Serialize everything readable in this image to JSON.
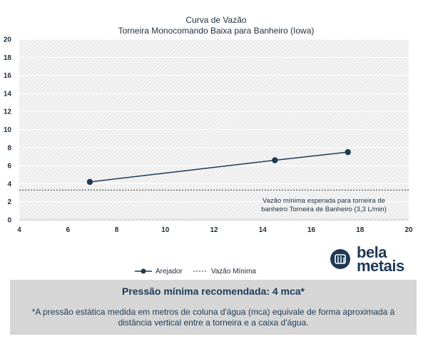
{
  "chart_data": {
    "type": "line",
    "title": "Curva de Vazão",
    "subtitle": "Torneira Monocomando Baixa para Banheiro (Iowa)",
    "xlim": [
      4,
      20
    ],
    "ylim": [
      0,
      20
    ],
    "x_ticks": [
      4,
      6,
      8,
      10,
      12,
      14,
      16,
      18,
      20
    ],
    "y_ticks": [
      0,
      2,
      4,
      6,
      8,
      10,
      12,
      14,
      16,
      18,
      20
    ],
    "grid": true,
    "series": [
      {
        "name": "Arejador",
        "color": "#1e3a55",
        "points": [
          {
            "x": 6.9,
            "y": 4.2
          },
          {
            "x": 14.5,
            "y": 6.6
          },
          {
            "x": 17.5,
            "y": 7.5
          }
        ]
      },
      {
        "name": "Vazão Mínima",
        "color": "#333333",
        "style": "dashed",
        "constant_y": 3.3
      }
    ],
    "annotation": {
      "line1": "Vazão mínima esperada para torneira de",
      "line2": "banheiro Torneira de Banheiro (3,3 L/min)"
    },
    "legend_position": "bottom-left"
  },
  "legend": {
    "arejador": "Arejador",
    "vazao_minima": "Vazão Mínima"
  },
  "logo": {
    "line1": "bela",
    "line2": "metais",
    "icon": "bela-metais-logo-icon",
    "color": "#1e3a55"
  },
  "info": {
    "headline": "Pressão mínima recomendada: 4 mca*",
    "note": "*A pressão estática medida em metros de coluna d'água (mca) equivale de forma aproximada à distância vertical entre a torneira e a caixa d'água."
  }
}
